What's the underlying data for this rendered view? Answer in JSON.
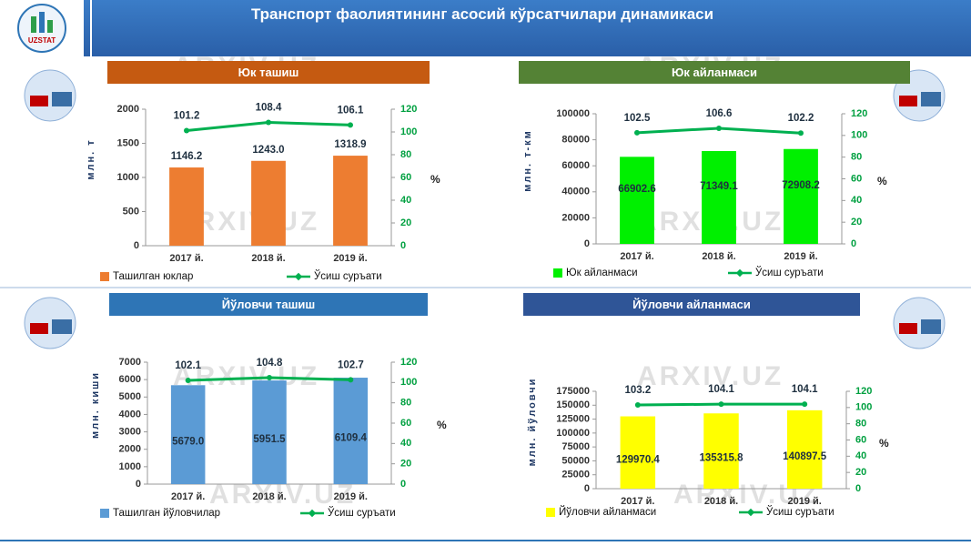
{
  "header": {
    "title": "Транспорт фаолиятининг асосий кўрсатчилари динамикаси",
    "logo": "UZSTAT"
  },
  "watermark": "ARXIV.UZ",
  "chart_data": [
    {
      "type": "bar-line",
      "title": "Юк ташиш",
      "title_color": "#c55a11",
      "ylabel": "млн. т",
      "y2label": "%",
      "categories": [
        "2017 й.",
        "2018 й.",
        "2019 й."
      ],
      "series": [
        {
          "name": "Ташилган юклар",
          "color": "#ed7d31",
          "values": [
            1146.2,
            1243.0,
            1318.9
          ],
          "value_labels": [
            "1146.2",
            "1243.0",
            "1318.9"
          ]
        },
        {
          "name": "Ўсиш суръати",
          "color": "#00b050",
          "axis": "y2",
          "values": [
            101.2,
            108.4,
            106.1
          ]
        }
      ],
      "ylim": [
        0,
        2000
      ],
      "yticks": [
        0,
        500,
        1000,
        1500,
        2000
      ],
      "y2lim": [
        0,
        120
      ],
      "y2ticks": [
        0,
        20,
        40,
        60,
        80,
        100,
        120
      ]
    },
    {
      "type": "bar-line",
      "title": "Юк айланмаси",
      "title_color": "#548235",
      "ylabel": "млн. т-км",
      "y2label": "%",
      "categories": [
        "2017 й.",
        "2018 й.",
        "2019 й."
      ],
      "series": [
        {
          "name": "Юк айланмаси",
          "color": "#00f000",
          "values": [
            66902.6,
            71349.1,
            72908.2
          ]
        },
        {
          "name": "Ўсиш суръати",
          "color": "#00b050",
          "axis": "y2",
          "values": [
            102.5,
            106.6,
            102.2
          ]
        }
      ],
      "ylim": [
        0,
        100000
      ],
      "yticks": [
        0,
        20000,
        40000,
        60000,
        80000,
        100000
      ],
      "y2lim": [
        0,
        120
      ],
      "y2ticks": [
        0,
        20,
        40,
        60,
        80,
        100,
        120
      ]
    },
    {
      "type": "bar-line",
      "title": "Йўловчи ташиш",
      "title_color": "#2e75b6",
      "ylabel": "млн. киши",
      "y2label": "%",
      "categories": [
        "2017 й.",
        "2018 й.",
        "2019 й."
      ],
      "series": [
        {
          "name": "Ташилган йўловчилар",
          "color": "#5b9bd5",
          "values": [
            5679.0,
            5951.5,
            6109.4
          ],
          "value_labels": [
            "5679.0",
            "5951.5",
            "6109.4"
          ]
        },
        {
          "name": "Ўсиш суръати",
          "color": "#00b050",
          "axis": "y2",
          "values": [
            102.1,
            104.8,
            102.7
          ]
        }
      ],
      "ylim": [
        0,
        7000
      ],
      "yticks": [
        0,
        1000,
        2000,
        3000,
        4000,
        5000,
        6000,
        7000
      ],
      "y2lim": [
        0,
        120
      ],
      "y2ticks": [
        0,
        20,
        40,
        60,
        80,
        100,
        120
      ]
    },
    {
      "type": "bar-line",
      "title": "Йўловчи айланмаси",
      "title_color": "#2f5597",
      "ylabel": "млн. йўловчи",
      "y2label": "%",
      "categories": [
        "2017 й.",
        "2018 й.",
        "2019 й."
      ],
      "series": [
        {
          "name": "Йўловчи айланмаси",
          "color": "#ffff00",
          "values": [
            129970.4,
            135315.8,
            140897.5
          ]
        },
        {
          "name": "Ўсиш суръати",
          "color": "#00b050",
          "axis": "y2",
          "values": [
            103.2,
            104.1,
            104.1
          ]
        }
      ],
      "ylim": [
        0,
        175000
      ],
      "yticks": [
        0,
        25000,
        50000,
        75000,
        100000,
        125000,
        150000,
        175000
      ],
      "y2lim": [
        0,
        120
      ],
      "y2ticks": [
        0,
        20,
        40,
        60,
        80,
        100,
        120
      ]
    }
  ]
}
